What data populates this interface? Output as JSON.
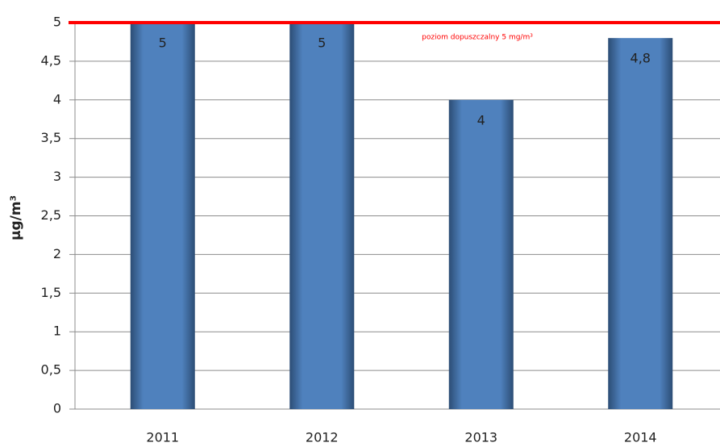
{
  "chart_data": {
    "type": "bar",
    "y_axis_label": "µg/m³",
    "categories": [
      "2011",
      "2012",
      "2013",
      "2014"
    ],
    "values": [
      5,
      5,
      4,
      4.8
    ],
    "value_labels": [
      "5",
      "5",
      "4",
      "4,8"
    ],
    "color": "#4f81bd",
    "ylim": [
      0,
      5
    ],
    "yticks": [
      0,
      {
        "value": 0.5,
        "label": "0,5"
      },
      1,
      {
        "value": 1.5,
        "label": "1,5"
      },
      2,
      {
        "value": 2.5,
        "label": "2,5"
      },
      3,
      {
        "value": 3.5,
        "label": "3,5"
      },
      4,
      {
        "value": 4.5,
        "label": "4,5"
      },
      5
    ],
    "grid": true,
    "reference_line": {
      "value": 5,
      "label": "poziom dopuszczalny 5 mg/m³",
      "color": "#ff0000"
    }
  }
}
